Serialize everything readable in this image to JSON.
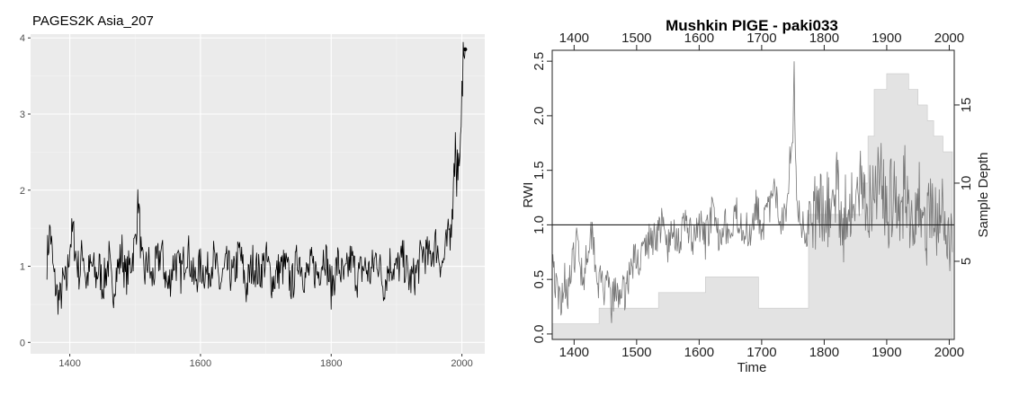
{
  "chart_data": [
    {
      "type": "line",
      "title": "PAGES2K Asia_207",
      "xlabel": "",
      "ylabel": "",
      "xlim": [
        1340,
        2035
      ],
      "ylim": [
        -0.15,
        4.05
      ],
      "x_ticks": [
        "1400",
        "1600",
        "1800",
        "2000"
      ],
      "y_ticks": [
        "0",
        "1",
        "2",
        "3",
        "4"
      ],
      "grid": true,
      "background": "#ebebeb",
      "line_color": "#000000",
      "series": [
        {
          "x": [
            1365,
            1370,
            1375,
            1380,
            1385,
            1390,
            1395,
            1400,
            1405,
            1410,
            1415,
            1420,
            1425,
            1430,
            1435,
            1440,
            1445,
            1450,
            1455,
            1460,
            1465,
            1470,
            1475,
            1480,
            1485,
            1490,
            1495,
            1500,
            1505,
            1510,
            1515,
            1520,
            1525,
            1530,
            1540,
            1550,
            1560,
            1570,
            1580,
            1590,
            1600,
            1610,
            1620,
            1630,
            1640,
            1650,
            1660,
            1670,
            1680,
            1690,
            1700,
            1710,
            1720,
            1730,
            1740,
            1750,
            1760,
            1770,
            1780,
            1790,
            1800,
            1810,
            1820,
            1830,
            1840,
            1850,
            1860,
            1870,
            1880,
            1890,
            1900,
            1910,
            1920,
            1930,
            1940,
            1950,
            1960,
            1970,
            1980,
            1985,
            1990,
            1995,
            2000,
            2005
          ],
          "y": [
            1.1,
            1.5,
            0.9,
            0.65,
            0.55,
            0.8,
            0.75,
            1.3,
            1.45,
            1.1,
            0.9,
            1.25,
            0.8,
            0.95,
            1.0,
            0.85,
            1.0,
            0.75,
            0.9,
            1.1,
            0.6,
            0.9,
            1.0,
            1.2,
            0.85,
            0.95,
            1.1,
            1.3,
            1.9,
            1.0,
            0.9,
            1.1,
            0.8,
            0.95,
            1.2,
            0.7,
            1.1,
            0.9,
            1.25,
            0.8,
            1.0,
            0.9,
            1.1,
            0.75,
            1.0,
            0.85,
            1.2,
            0.7,
            1.05,
            0.9,
            1.1,
            0.8,
            0.95,
            1.0,
            0.75,
            1.15,
            0.85,
            1.0,
            0.9,
            1.2,
            0.7,
            1.05,
            0.8,
            1.1,
            0.85,
            1.0,
            0.9,
            1.15,
            0.75,
            1.05,
            0.95,
            1.1,
            0.8,
            0.9,
            1.2,
            1.1,
            1.3,
            1.0,
            1.4,
            1.8,
            2.4,
            2.2,
            3.2,
            3.85
          ]
        }
      ]
    },
    {
      "type": "line",
      "title": "Mushkin PIGE - paki033",
      "xlabel": "Time",
      "ylabel": "RWI",
      "y2label": "Sample Depth",
      "xlim": [
        1365,
        2008
      ],
      "ylim": [
        -0.05,
        2.6
      ],
      "y2lim": [
        0,
        18.5
      ],
      "x_ticks": [
        "1400",
        "1500",
        "1600",
        "1700",
        "1800",
        "1900",
        "2000"
      ],
      "y_ticks": [
        "0.0",
        "0.5",
        "1.0",
        "1.5",
        "2.0",
        "2.5"
      ],
      "y2_ticks": [
        "5",
        "10",
        "15"
      ],
      "reference_line": 1.0,
      "grid": false,
      "line_color": "#777777",
      "depth_fill": "#e3e3e3",
      "series": [
        {
          "name": "RWI",
          "x": [
            1365,
            1370,
            1375,
            1380,
            1385,
            1390,
            1395,
            1400,
            1405,
            1410,
            1415,
            1420,
            1425,
            1430,
            1435,
            1440,
            1445,
            1450,
            1455,
            1460,
            1465,
            1470,
            1475,
            1480,
            1485,
            1490,
            1495,
            1500,
            1510,
            1520,
            1530,
            1540,
            1550,
            1560,
            1570,
            1580,
            1590,
            1600,
            1610,
            1620,
            1630,
            1640,
            1650,
            1660,
            1670,
            1680,
            1690,
            1700,
            1710,
            1720,
            1730,
            1740,
            1745,
            1750,
            1752,
            1755,
            1760,
            1770,
            1780,
            1790,
            1800,
            1810,
            1820,
            1830,
            1840,
            1850,
            1860,
            1870,
            1880,
            1890,
            1900,
            1910,
            1920,
            1930,
            1940,
            1950,
            1960,
            1970,
            1980,
            1990,
            2000,
            2005
          ],
          "y": [
            0.8,
            0.45,
            0.3,
            0.35,
            0.5,
            0.4,
            0.55,
            0.7,
            0.85,
            0.65,
            0.5,
            0.75,
            0.9,
            0.95,
            0.6,
            0.45,
            0.5,
            0.35,
            0.45,
            0.25,
            0.4,
            0.3,
            0.45,
            0.35,
            0.5,
            0.55,
            0.7,
            0.65,
            0.75,
            0.85,
            0.9,
            1.0,
            0.8,
            0.95,
            0.85,
            1.05,
            0.8,
            1.0,
            0.85,
            1.1,
            0.9,
            1.05,
            0.85,
            1.1,
            1.0,
            0.9,
            1.2,
            1.0,
            1.1,
            1.3,
            1.05,
            1.2,
            1.6,
            1.9,
            2.5,
            1.4,
            1.1,
            0.9,
            1.15,
            1.05,
            1.2,
            1.1,
            1.35,
            1.0,
            1.25,
            1.1,
            1.4,
            1.2,
            1.35,
            1.5,
            1.1,
            1.3,
            1.0,
            1.4,
            1.05,
            1.3,
            0.9,
            1.15,
            0.95,
            1.1,
            0.85,
            0.75
          ]
        },
        {
          "name": "Sample Depth",
          "x": [
            1365,
            1440,
            1440,
            1500,
            1500,
            1535,
            1535,
            1610,
            1610,
            1695,
            1695,
            1775,
            1775,
            1860,
            1860,
            1870,
            1870,
            1880,
            1880,
            1900,
            1900,
            1935,
            1935,
            1950,
            1950,
            1965,
            1965,
            1975,
            1975,
            1990,
            1990,
            2005
          ],
          "y": [
            1,
            1,
            2,
            2,
            2,
            2,
            3,
            3,
            4,
            4,
            2,
            2,
            8,
            8,
            10,
            10,
            13,
            13,
            16,
            16,
            17,
            17,
            16,
            16,
            15,
            15,
            14,
            14,
            13,
            13,
            12,
            12
          ]
        }
      ]
    }
  ]
}
